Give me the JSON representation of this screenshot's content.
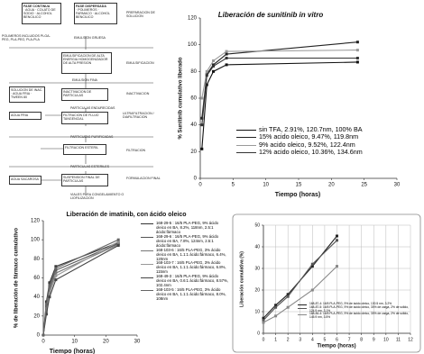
{
  "diagram": {
    "nodes": [
      "FASE CONTINUA",
      "· AGUA · COLATO DE SODIO · ALCOHOL BENCILICO",
      "FASE DISPERSADA",
      "· POLIMEROS · FARMACO · ALCOHOL BENCILICO",
      "PREPARACION DE SOLUCION",
      "POLIMEROS INCLUIDOS PLGA-PEG, PLA-PEG, PLA-PLA",
      "EMULSION GRUESA",
      "EMULSIFICACION DE ALTA ENERGIA HOMOGENIZADOR DE ALTA PRESION",
      "EMULSIFICACION",
      "EMULSION FINA",
      "SOLUCION DE INAC. · AGUA FRIA · TWEEN 80",
      "INACTIVACION DE PARTICULAS",
      "INACTIVACION",
      "PARTICULAS ENDURECIDAS",
      "AGUA FRIA",
      "FILTRACION DE FLUJO TANGENCIAL",
      "ULTRAFILTRACION / DIAFILTRACION",
      "PARTICULAS PURIFICADAS",
      "FILTRACION ESTERIL",
      "FILTRACION",
      "PARTICULAS ESTERILES",
      "AGUA SACAROSA",
      "SUSPENSION FINAL DE PARTICULAS",
      "FORMULACION FINAL",
      "VIALES PARA CONGELAMIENTO O LIOFILIZACION"
    ]
  },
  "chart_data": [
    {
      "type": "line",
      "title": "Liberación de sunitinib in vitro",
      "y_label": "% Sunitinib cumulativo liberado",
      "x_label": "Tiempo (horas)",
      "x": [
        0.25,
        1,
        2,
        4,
        24
      ],
      "xlim": [
        0,
        30
      ],
      "xticks": [
        0,
        5,
        10,
        15,
        20,
        25,
        30
      ],
      "ylim": [
        0,
        120
      ],
      "yticks": [
        0,
        20,
        40,
        60,
        80,
        100,
        120
      ],
      "series": [
        {
          "name": "sin TFA, 2.91%, 120.7nm, 100% BA",
          "color": "#111111",
          "values": [
            22,
            70,
            80,
            85,
            87
          ]
        },
        {
          "name": "15% acido oleico, 9.47%, 119.8nm",
          "color": "#222222",
          "values": [
            45,
            78,
            85,
            93,
            102
          ]
        },
        {
          "name": "9% acido oleico, 9.52%, 122.4nm",
          "color": "#999999",
          "values": [
            60,
            80,
            88,
            95,
            96
          ]
        },
        {
          "name": "12% acido oleico, 10.36%, 134.6nm",
          "color": "#333333",
          "values": [
            40,
            77,
            84,
            90,
            90
          ]
        }
      ]
    },
    {
      "type": "line",
      "title": "Liberación de imatinib, con ácido oleico",
      "y_label": "% de liberación de fármaco cumulativo",
      "x_label": "Tiempo (horas)",
      "x": [
        0,
        1,
        2,
        4,
        24
      ],
      "xlim": [
        0,
        30
      ],
      "xticks": [
        0,
        10,
        20,
        30
      ],
      "ylim": [
        0,
        120
      ],
      "yticks": [
        0,
        20,
        40,
        60,
        80,
        100,
        120
      ],
      "series": [
        {
          "name": "168-29-5 : 16/5 PLA-PEG, 9% ácido oleico en BA, 8.2%, 118nm, 2.5:1 ácido:fármaco",
          "color": "#333333",
          "values": [
            0,
            35,
            55,
            72,
            97
          ]
        },
        {
          "name": "168-29-6 : 16/5 PLA-PEG, 9% ácido oleico en BA, 7.8%, 124nm, 2.5:1 ácido:fármaco",
          "color": "#555555",
          "values": [
            0,
            30,
            50,
            68,
            96
          ]
        },
        {
          "name": "168-103-6 : 16/5 PLA-PEG, 3% ácido oleico en BA, 1.1:1 ácido:fármaco, 6.4%, 120nm",
          "color": "#777777",
          "values": [
            0,
            28,
            47,
            65,
            95
          ]
        },
        {
          "name": "168-103-7 : 16/5 PLA-PEG, 3% ácido oleico en BA, 1.1:1 ácido:fármaco, 6.8%, 115nm",
          "color": "#999999",
          "values": [
            0,
            25,
            44,
            62,
            98
          ]
        },
        {
          "name": "168-49-3 : 16/5 PLA-PEG, 9% ácido oleico en BA, 0.6:1 ácido:fármaco, 8.57%, 102.4nm",
          "color": "#444444",
          "values": [
            0,
            22,
            40,
            58,
            94
          ]
        },
        {
          "name": "168-103-5 : 16/5 PLA-PEG, 3% ácido oleico en BA, 1.1:1 ácido:fármaco, 8.0%, 108nm",
          "color": "#666666",
          "values": [
            0,
            32,
            52,
            70,
            100
          ]
        }
      ]
    },
    {
      "type": "line",
      "y_label": "Liberación cumulativa (%)",
      "x_label": "Tiempo (horas)",
      "grid": true,
      "x": [
        0,
        1,
        2,
        4,
        6
      ],
      "xlim": [
        0,
        12
      ],
      "xticks": [
        0,
        1,
        2,
        3,
        4,
        5,
        6,
        7,
        8,
        9,
        10,
        11,
        12
      ],
      "ylim": [
        0,
        50
      ],
      "yticks": [
        0,
        10,
        20,
        30,
        40,
        50
      ],
      "series": [
        {
          "name": "168-87-4: 16/5 PLA-PEG, 9% de ácido oleico, 130.5 nm, 3.2%",
          "color": "#222222",
          "values": [
            7,
            13,
            18,
            31,
            45
          ]
        },
        {
          "name": "168-87-5: 16/5 PLA-PEG, 9% de ácido oleico, 30% de carga, 2% de sólido, 124.9 nm, 3.1%",
          "color": "#555555",
          "values": [
            6,
            12,
            17,
            32,
            43
          ]
        },
        {
          "name": "168-84-4: 16/5 PLA-PEG, 9% de ácido oleico, 30% de carga, 2% de sólido, 145.9 nm, 3.5%",
          "color": "#888888",
          "values": [
            5,
            8,
            12,
            20,
            31
          ]
        }
      ]
    }
  ]
}
